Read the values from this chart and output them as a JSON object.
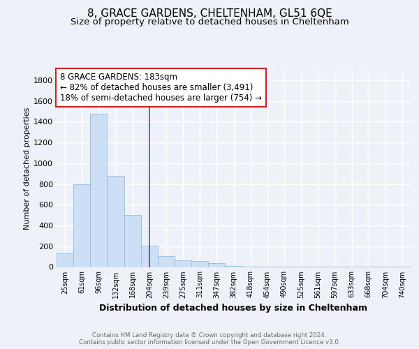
{
  "title1": "8, GRACE GARDENS, CHELTENHAM, GL51 6QE",
  "title2": "Size of property relative to detached houses in Cheltenham",
  "xlabel": "Distribution of detached houses by size in Cheltenham",
  "ylabel": "Number of detached properties",
  "categories": [
    "25sqm",
    "61sqm",
    "96sqm",
    "132sqm",
    "168sqm",
    "204sqm",
    "239sqm",
    "275sqm",
    "311sqm",
    "347sqm",
    "382sqm",
    "418sqm",
    "454sqm",
    "490sqm",
    "525sqm",
    "561sqm",
    "597sqm",
    "633sqm",
    "668sqm",
    "704sqm",
    "740sqm"
  ],
  "values": [
    130,
    800,
    1475,
    880,
    500,
    205,
    105,
    65,
    55,
    35,
    10,
    5,
    3,
    2,
    2,
    2,
    1,
    1,
    1,
    1,
    1
  ],
  "bar_color": "#ccdff5",
  "bar_edge_color": "#90bde0",
  "vline_x": 5.0,
  "vline_color": "#cc2222",
  "annotation_text": "8 GRACE GARDENS: 183sqm\n← 82% of detached houses are smaller (3,491)\n18% of semi-detached houses are larger (754) →",
  "annotation_box_color": "white",
  "annotation_box_edge": "#cc2222",
  "footer1": "Contains HM Land Registry data © Crown copyright and database right 2024.",
  "footer2": "Contains public sector information licensed under the Open Government Licence v3.0.",
  "ylim": [
    0,
    1900
  ],
  "background_color": "#eef2f8",
  "grid_color": "white",
  "title1_fontsize": 11,
  "title2_fontsize": 9.5,
  "ann_fontsize": 8.5,
  "ylabel_fontsize": 8,
  "xlabel_fontsize": 9,
  "ytick_fontsize": 8,
  "xtick_fontsize": 7
}
